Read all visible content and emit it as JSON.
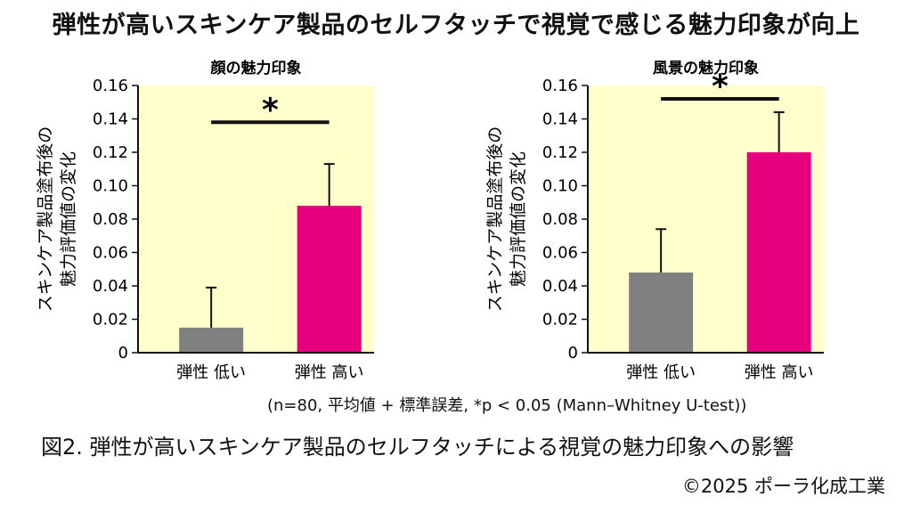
{
  "title": "弾性が高いスキンケア製品のセルフタッチで視覚で感じる魅力印象が向上",
  "chart_data": [
    {
      "type": "bar",
      "title": "顔の魅力印象",
      "ylabel_lines": [
        "スキンケア製品塗布後の",
        "魅力評価値の変化"
      ],
      "categories": [
        "弾性 低い",
        "弾性 高い"
      ],
      "values": [
        0.015,
        0.088
      ],
      "errors": [
        0.024,
        0.025
      ],
      "colors": [
        "#808080",
        "#e6007e"
      ],
      "ylim": [
        0,
        0.16
      ],
      "yticks": [
        "0",
        "0.02",
        "0.04",
        "0.06",
        "0.08",
        "0.10",
        "0.12",
        "0.14",
        "0.16"
      ],
      "significance": "*",
      "significance_y": 0.138,
      "background": "#ffffcc"
    },
    {
      "type": "bar",
      "title": "風景の魅力印象",
      "ylabel_lines": [
        "スキンケア製品塗布後の",
        "魅力評価値の変化"
      ],
      "categories": [
        "弾性 低い",
        "弾性 高い"
      ],
      "values": [
        0.048,
        0.12
      ],
      "errors": [
        0.026,
        0.024
      ],
      "colors": [
        "#808080",
        "#e6007e"
      ],
      "ylim": [
        0,
        0.16
      ],
      "yticks": [
        "0",
        "0.02",
        "0.04",
        "0.06",
        "0.08",
        "0.10",
        "0.12",
        "0.14",
        "0.16"
      ],
      "significance": "*",
      "significance_y": 0.152,
      "background": "#ffffcc"
    }
  ],
  "note": "(n=80, 平均値 + 標準誤差, *p < 0.05 (Mann–Whitney U-test))",
  "caption": "図2. 弾性が高いスキンケア製品のセルフタッチによる視覚の魅力印象への影響",
  "copyright": "©2025 ポーラ化成工業"
}
